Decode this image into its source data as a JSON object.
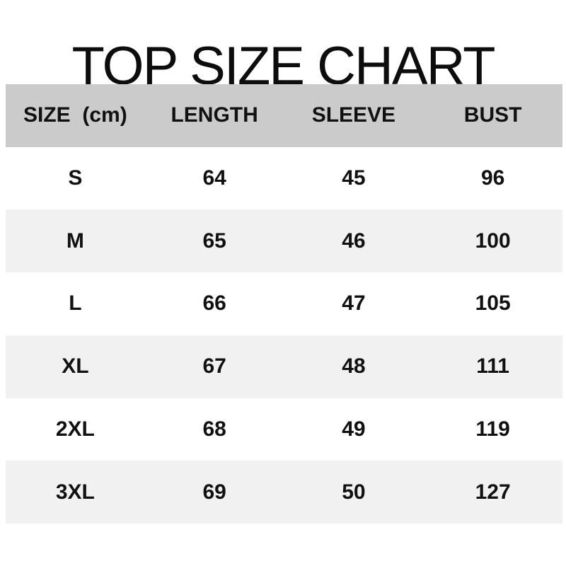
{
  "chart_data": {
    "type": "table",
    "title": "TOP SIZE CHART",
    "units": "cm",
    "columns": [
      "SIZE  (cm)",
      "LENGTH",
      "SLEEVE",
      "BUST"
    ],
    "rows": [
      [
        "S",
        "64",
        "45",
        "96"
      ],
      [
        "M",
        "65",
        "46",
        "100"
      ],
      [
        "L",
        "66",
        "47",
        "105"
      ],
      [
        "XL",
        "67",
        "48",
        "111"
      ],
      [
        "2XL",
        "68",
        "49",
        "119"
      ],
      [
        "3XL",
        "69",
        "50",
        "127"
      ]
    ]
  },
  "colors": {
    "background": "#ffffff",
    "header_row_bg": "#cbcbcb",
    "stripe_row_bg": "#f1f1f2",
    "plain_row_bg": "#ffffff",
    "text": "#111111",
    "title_text": "#0d0d0d"
  }
}
